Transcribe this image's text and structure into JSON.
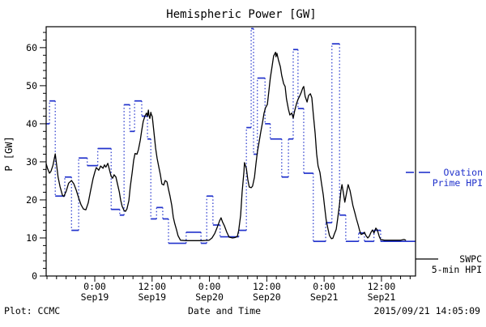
{
  "window": {
    "background": "#ffffff"
  },
  "title": "Hemispheric Power [GW]",
  "y_axis_label": "P [GW]",
  "footer": {
    "left": "Plot: CCMC",
    "center": "Date and Time",
    "right": "2015/09/21 14:05:09"
  },
  "legend": {
    "ovation_lines": [
      "Ovation",
      "Prime HPI"
    ],
    "swpc_lines": [
      "SWPC",
      "5-min HPI"
    ]
  },
  "colors": {
    "ovation": "#2233cc",
    "swpc": "#000000",
    "axis": "#000000",
    "background": "#ffffff"
  },
  "chart_data": {
    "type": "line",
    "title": "Hemispheric Power [GW]",
    "xlabel": "Date and Time",
    "ylabel": "P [GW]",
    "ylim": [
      0,
      65.5
    ],
    "y_major_ticks": [
      0,
      10,
      20,
      30,
      40,
      50,
      60
    ],
    "x_total_hours": 77.3,
    "x_ticks": [
      {
        "t": 10.17,
        "time": "0:00",
        "date": "Sep19"
      },
      {
        "t": 22.17,
        "time": "12:00",
        "date": "Sep19"
      },
      {
        "t": 34.17,
        "time": "0:00",
        "date": "Sep20"
      },
      {
        "t": 46.17,
        "time": "12:00",
        "date": "Sep20"
      },
      {
        "t": 58.17,
        "time": "0:00",
        "date": "Sep21"
      },
      {
        "t": 70.17,
        "time": "12:00",
        "date": "Sep21"
      }
    ],
    "series": [
      {
        "name": "SWPC 5-min HPI",
        "style": "solid-line",
        "color": "#000000",
        "points": [
          [
            0,
            29.5
          ],
          [
            0.3,
            28.2
          ],
          [
            0.7,
            27
          ],
          [
            1,
            27.5
          ],
          [
            1.4,
            29
          ],
          [
            1.9,
            32.1
          ],
          [
            2.2,
            29
          ],
          [
            2.5,
            26
          ],
          [
            2.9,
            23.5
          ],
          [
            3.4,
            21.2
          ],
          [
            3.7,
            20.9
          ],
          [
            4.2,
            22.3
          ],
          [
            4.7,
            24.4
          ],
          [
            5.3,
            25.1
          ],
          [
            5.8,
            24.2
          ],
          [
            6.3,
            22.5
          ],
          [
            6.8,
            20.5
          ],
          [
            7.3,
            18.7
          ],
          [
            7.8,
            17.6
          ],
          [
            8.3,
            17.4
          ],
          [
            8.8,
            19.2
          ],
          [
            9.3,
            22.5
          ],
          [
            9.8,
            25.5
          ],
          [
            10.2,
            27.4
          ],
          [
            10.5,
            28.5
          ],
          [
            11,
            27.8
          ],
          [
            11.4,
            28.9
          ],
          [
            11.9,
            28.3
          ],
          [
            12.2,
            29.2
          ],
          [
            12.5,
            28.6
          ],
          [
            12.9,
            29.6
          ],
          [
            13.2,
            28.1
          ],
          [
            13.6,
            26.2
          ],
          [
            13.9,
            25.7
          ],
          [
            14.2,
            26.6
          ],
          [
            14.6,
            26
          ],
          [
            14.9,
            24.3
          ],
          [
            15.3,
            22.1
          ],
          [
            15.6,
            19.9
          ],
          [
            15.9,
            18.3
          ],
          [
            16.3,
            17.2
          ],
          [
            16.6,
            17
          ],
          [
            16.9,
            17.6
          ],
          [
            17.3,
            19.8
          ],
          [
            17.6,
            23.4
          ],
          [
            18,
            27.2
          ],
          [
            18.3,
            30.4
          ],
          [
            18.6,
            32.2
          ],
          [
            19,
            32
          ],
          [
            19.3,
            33.2
          ],
          [
            19.7,
            35.7
          ],
          [
            20,
            38.3
          ],
          [
            20.3,
            40.6
          ],
          [
            20.7,
            42.1
          ],
          [
            21,
            42.8
          ],
          [
            21.2,
            42
          ],
          [
            21.4,
            43.6
          ],
          [
            21.5,
            42.3
          ],
          [
            21.7,
            41.4
          ],
          [
            21.9,
            43
          ],
          [
            22,
            42.5
          ],
          [
            22.2,
            41.9
          ],
          [
            22.5,
            38.5
          ],
          [
            22.9,
            33.6
          ],
          [
            23.2,
            31
          ],
          [
            23.6,
            28.5
          ],
          [
            23.9,
            26.6
          ],
          [
            24.2,
            24.2
          ],
          [
            24.6,
            23.9
          ],
          [
            24.9,
            25.1
          ],
          [
            25.3,
            24.7
          ],
          [
            25.6,
            22.8
          ],
          [
            25.9,
            21.1
          ],
          [
            26.3,
            18.5
          ],
          [
            26.6,
            15.5
          ],
          [
            26.9,
            13.8
          ],
          [
            27.3,
            12.1
          ],
          [
            27.6,
            10.6
          ],
          [
            28.1,
            9.4
          ],
          [
            29.3,
            9.3
          ],
          [
            31,
            9.3
          ],
          [
            32.7,
            9.3
          ],
          [
            34.1,
            9.4
          ],
          [
            34.7,
            10
          ],
          [
            35.3,
            11.2
          ],
          [
            35.8,
            12.8
          ],
          [
            36.3,
            14.5
          ],
          [
            36.6,
            15.3
          ],
          [
            36.9,
            14.2
          ],
          [
            37.3,
            13.2
          ],
          [
            37.8,
            11.5
          ],
          [
            38.3,
            10.2
          ],
          [
            39,
            10
          ],
          [
            39.5,
            10.1
          ],
          [
            40,
            10.4
          ],
          [
            40.3,
            12
          ],
          [
            40.7,
            16
          ],
          [
            41,
            22
          ],
          [
            41.4,
            27.5
          ],
          [
            41.5,
            29.8
          ],
          [
            41.9,
            28.2
          ],
          [
            42.2,
            25.4
          ],
          [
            42.5,
            23.4
          ],
          [
            42.9,
            23.2
          ],
          [
            43.2,
            23.6
          ],
          [
            43.6,
            26
          ],
          [
            43.9,
            29.5
          ],
          [
            44.2,
            32.5
          ],
          [
            44.6,
            35.5
          ],
          [
            44.9,
            37.8
          ],
          [
            45.3,
            40.5
          ],
          [
            45.6,
            42.8
          ],
          [
            45.9,
            44.2
          ],
          [
            46.3,
            45.1
          ],
          [
            46.6,
            48.5
          ],
          [
            46.9,
            52
          ],
          [
            47.3,
            55.2
          ],
          [
            47.6,
            57.8
          ],
          [
            48,
            58.8
          ],
          [
            48.1,
            57.6
          ],
          [
            48.3,
            58.5
          ],
          [
            48.6,
            56.8
          ],
          [
            49,
            55
          ],
          [
            49.3,
            52.7
          ],
          [
            49.7,
            50.5
          ],
          [
            50,
            49.8
          ],
          [
            50.3,
            46.5
          ],
          [
            50.7,
            43.8
          ],
          [
            51,
            42.3
          ],
          [
            51.4,
            42.8
          ],
          [
            51.7,
            41.5
          ],
          [
            52,
            43.4
          ],
          [
            52.4,
            45.3
          ],
          [
            52.7,
            46.4
          ],
          [
            53.1,
            47.4
          ],
          [
            53.4,
            48.3
          ],
          [
            53.7,
            49.4
          ],
          [
            53.9,
            49.8
          ],
          [
            54.2,
            47.2
          ],
          [
            54.6,
            45.7
          ],
          [
            54.9,
            47.4
          ],
          [
            55.3,
            47.9
          ],
          [
            55.6,
            46.8
          ],
          [
            55.9,
            42.5
          ],
          [
            56.3,
            37.4
          ],
          [
            56.6,
            32.1
          ],
          [
            56.9,
            28.9
          ],
          [
            57.3,
            27.2
          ],
          [
            57.6,
            24.5
          ],
          [
            58,
            21.3
          ],
          [
            58.3,
            17.9
          ],
          [
            58.6,
            14.7
          ],
          [
            59,
            12.3
          ],
          [
            59.3,
            10.6
          ],
          [
            59.7,
            9.8
          ],
          [
            60,
            9.9
          ],
          [
            60.3,
            11
          ],
          [
            60.7,
            12.3
          ],
          [
            61,
            14.9
          ],
          [
            61.4,
            18.9
          ],
          [
            61.7,
            22.6
          ],
          [
            61.9,
            24
          ],
          [
            62.2,
            21.9
          ],
          [
            62.5,
            19.4
          ],
          [
            62.9,
            22.1
          ],
          [
            63.2,
            24
          ],
          [
            63.6,
            22.4
          ],
          [
            63.9,
            20.4
          ],
          [
            64.2,
            18.5
          ],
          [
            64.6,
            16.6
          ],
          [
            64.9,
            15.1
          ],
          [
            65.3,
            13.4
          ],
          [
            65.6,
            11.9
          ],
          [
            65.9,
            10.9
          ],
          [
            66.3,
            11.1
          ],
          [
            66.6,
            11.5
          ],
          [
            66.9,
            10.7
          ],
          [
            67.3,
            10
          ],
          [
            67.6,
            10.4
          ],
          [
            68,
            11.5
          ],
          [
            68.3,
            12.1
          ],
          [
            68.6,
            11.3
          ],
          [
            69,
            12.6
          ],
          [
            69.3,
            12.1
          ],
          [
            69.7,
            10.4
          ],
          [
            70,
            9.6
          ],
          [
            70.8,
            9.4
          ],
          [
            71.7,
            9.4
          ],
          [
            72.5,
            9.4
          ],
          [
            73.4,
            9.4
          ],
          [
            74.2,
            9.4
          ],
          [
            74.9,
            9.6
          ],
          [
            75.3,
            9.4
          ]
        ]
      },
      {
        "name": "Ovation Prime HPI",
        "style": "steps-dotted-risers",
        "color": "#2233cc",
        "segments": [
          [
            0,
            0.7,
            40
          ],
          [
            0.7,
            1.9,
            46
          ],
          [
            1.9,
            3.9,
            21
          ],
          [
            3.9,
            5.3,
            26
          ],
          [
            5.3,
            6.8,
            12
          ],
          [
            6.8,
            8.6,
            31
          ],
          [
            8.6,
            10.8,
            29
          ],
          [
            10.8,
            13.6,
            33.5
          ],
          [
            13.6,
            15.4,
            17.5
          ],
          [
            15.4,
            16.3,
            16
          ],
          [
            16.3,
            17.5,
            45
          ],
          [
            17.5,
            18.5,
            38
          ],
          [
            18.5,
            20,
            46
          ],
          [
            20,
            21.2,
            42
          ],
          [
            21.2,
            21.9,
            36
          ],
          [
            21.9,
            23.1,
            15
          ],
          [
            23.1,
            24.4,
            18
          ],
          [
            24.4,
            25.6,
            15
          ],
          [
            25.6,
            29.3,
            8.6
          ],
          [
            29.3,
            32.4,
            11.5
          ],
          [
            32.4,
            33.6,
            8.6
          ],
          [
            33.6,
            34.9,
            21
          ],
          [
            34.9,
            36.4,
            13.4
          ],
          [
            36.4,
            40.3,
            10.3
          ],
          [
            40.3,
            41.9,
            12
          ],
          [
            41.9,
            42.9,
            39
          ],
          [
            42.9,
            43.4,
            65
          ],
          [
            43.4,
            44.2,
            32
          ],
          [
            44.2,
            45.8,
            52
          ],
          [
            45.8,
            46.9,
            40
          ],
          [
            46.9,
            49.3,
            36
          ],
          [
            49.3,
            50.7,
            26
          ],
          [
            50.7,
            51.7,
            36
          ],
          [
            51.7,
            52.7,
            59.5
          ],
          [
            52.7,
            53.9,
            44
          ],
          [
            53.9,
            55.9,
            27
          ],
          [
            55.9,
            58.5,
            9.1
          ],
          [
            58.5,
            59.8,
            14
          ],
          [
            59.8,
            61.4,
            61
          ],
          [
            61.4,
            62.7,
            16
          ],
          [
            62.7,
            65.4,
            9.1
          ],
          [
            65.4,
            66.6,
            11.3
          ],
          [
            66.6,
            68.6,
            9.1
          ],
          [
            68.6,
            70,
            12
          ],
          [
            70,
            77.3,
            9.1
          ]
        ]
      }
    ]
  }
}
